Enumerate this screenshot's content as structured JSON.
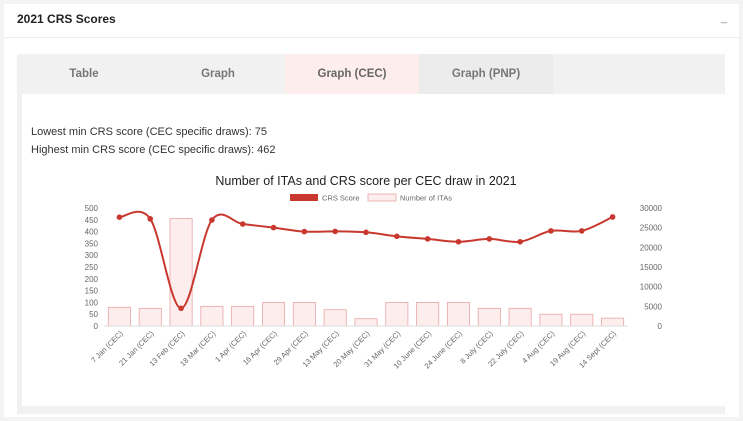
{
  "card": {
    "title": "2021 CRS Scores",
    "collapse_icon": "minimize-icon",
    "collapse_glyph": "_"
  },
  "tabs": [
    {
      "label": "Table",
      "active": false
    },
    {
      "label": "Graph",
      "active": false
    },
    {
      "label": "Graph (CEC)",
      "active": true
    },
    {
      "label": "Graph (PNP)",
      "active": false
    }
  ],
  "stats": {
    "lowest": "Lowest min CRS score (CEC specific draws): 75",
    "highest": "Highest min CRS score (CEC specific draws): 462"
  },
  "colors": {
    "line": "#c8382e",
    "bar_fill": "#fdeeed",
    "bar_stroke": "#e9a5a5",
    "active_tab": "#fdeeed"
  },
  "chart_data": {
    "type": "bar",
    "title": "Number of ITAs and CRS score per CEC draw in 2021",
    "legend_position": "top",
    "categories": [
      "7 Jan (CEC)",
      "21 Jan (CEC)",
      "13 Feb (CEC)",
      "18 Mar (CEC)",
      "1 Apr (CEC)",
      "16 Apr (CEC)",
      "29 Apr (CEC)",
      "13 May (CEC)",
      "20 May (CEC)",
      "31 May (CEC)",
      "10 June (CEC)",
      "24 June (CEC)",
      "8 July (CEC)",
      "22 July (CEC)",
      "4 Aug (CEC)",
      "19 Aug (CEC)",
      "14 Sept (CEC)"
    ],
    "series": [
      {
        "name": "CRS Score",
        "type": "line",
        "axis": "left",
        "values": [
          461,
          454,
          75,
          449,
          432,
          417,
          400,
          401,
          397,
          380,
          369,
          357,
          369,
          357,
          403,
          403,
          462
        ]
      },
      {
        "name": "Number of ITAs",
        "type": "bar",
        "axis": "right",
        "values": [
          4750,
          4500,
          27332,
          5000,
          5000,
          6000,
          6000,
          4147,
          1842,
          5956,
          6000,
          6000,
          4500,
          4500,
          3000,
          3000,
          2000
        ]
      }
    ],
    "y_left": {
      "min": 0,
      "max": 500,
      "ticks": [
        0,
        50,
        100,
        150,
        200,
        250,
        300,
        350,
        400,
        450,
        500
      ]
    },
    "y_right": {
      "min": 0,
      "max": 30000,
      "ticks": [
        0,
        5000,
        10000,
        15000,
        20000,
        25000,
        30000
      ]
    },
    "grid": false
  }
}
